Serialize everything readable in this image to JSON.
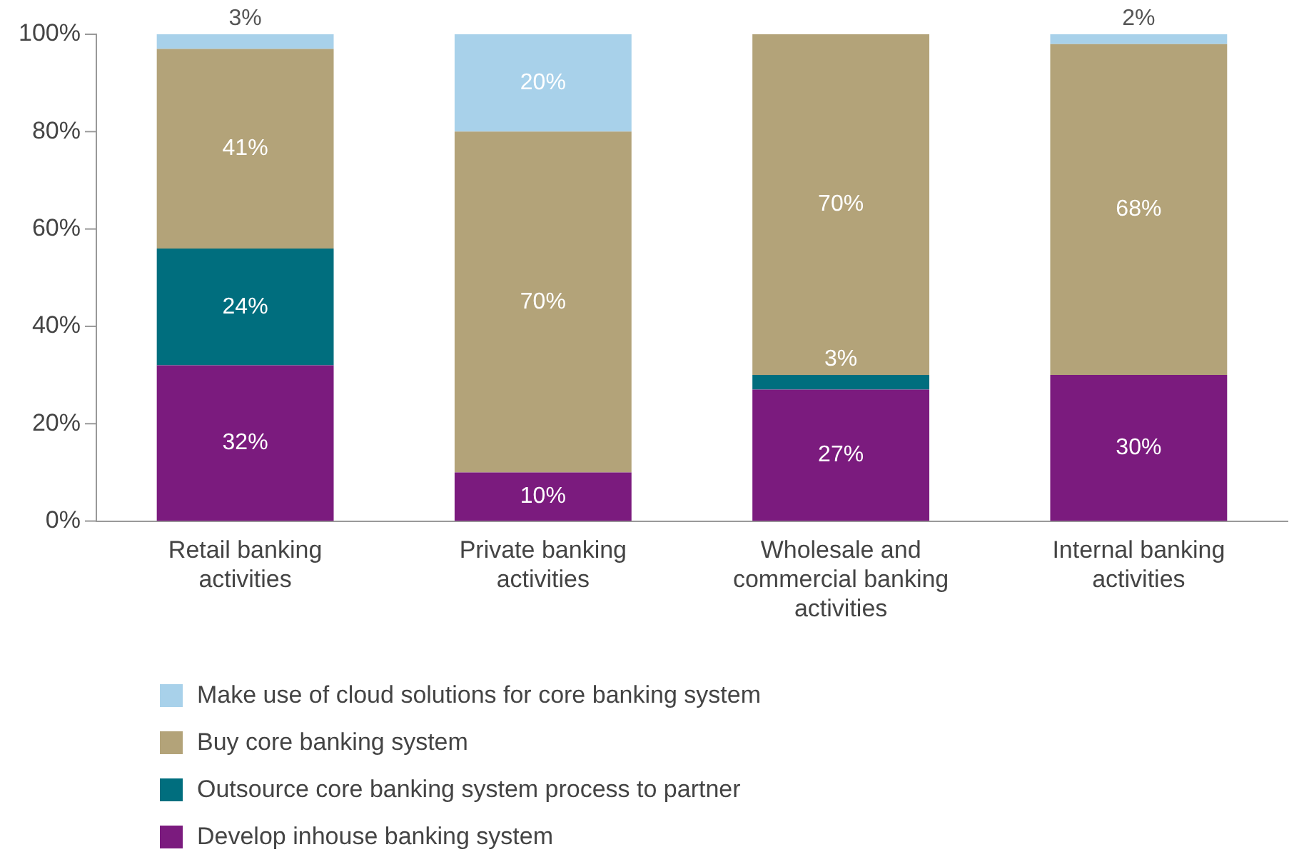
{
  "chart_data": {
    "type": "bar",
    "stacked": true,
    "legend": "bottom",
    "grid": false,
    "categories": [
      "Retail banking activities",
      "Private banking activities",
      "Wholesale and commercial banking activities",
      "Internal banking activities"
    ],
    "ylim": [
      0,
      100
    ],
    "yticks": [
      {
        "value": 0,
        "label": "0%"
      },
      {
        "value": 20,
        "label": "20%"
      },
      {
        "value": 40,
        "label": "40%"
      },
      {
        "value": 60,
        "label": "60%"
      },
      {
        "value": 80,
        "label": "80%"
      },
      {
        "value": 100,
        "label": "100%"
      }
    ],
    "series": [
      {
        "name": "Develop inhouse banking system",
        "color": "#7b1b7e",
        "values": [
          32,
          10,
          27,
          30
        ],
        "value_labels": [
          "32%",
          "10%",
          "27%",
          "30%"
        ]
      },
      {
        "name": "Outsource core banking system process to partner",
        "color": "#006e7e",
        "values": [
          24,
          null,
          3,
          null
        ],
        "value_labels": [
          "24%",
          null,
          "3%",
          null
        ]
      },
      {
        "name": "Buy core banking system",
        "color": "#b3a379",
        "values": [
          41,
          70,
          70,
          68
        ],
        "value_labels": [
          "41%",
          "70%",
          "70%",
          "68%"
        ]
      },
      {
        "name": "Make use of cloud solutions for core banking system",
        "color": "#a8d1ea",
        "values": [
          3,
          20,
          null,
          2
        ],
        "value_labels": [
          "3%",
          "20%",
          null,
          "2%"
        ]
      }
    ]
  }
}
